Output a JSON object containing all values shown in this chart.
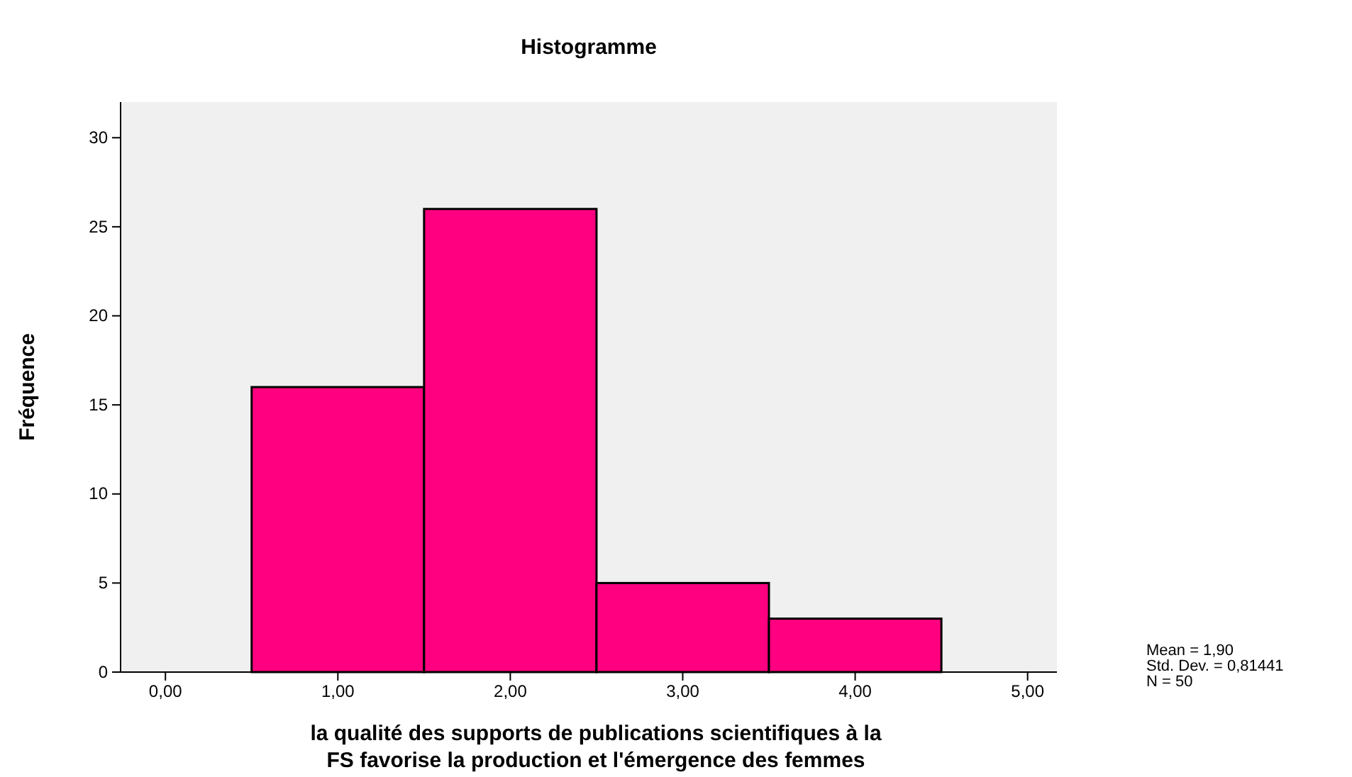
{
  "chart_data": {
    "type": "histogram",
    "title": "Histogramme",
    "xlabel": "la qualité des supports de publications scientifiques à la FS favorise la production et l'émergence des femmes",
    "ylabel": "Fréquence",
    "bins": [
      0.5,
      1.5,
      2.5,
      3.5,
      4.5
    ],
    "values": [
      16,
      26,
      5,
      3
    ],
    "color": "#ff0080",
    "xlim": [
      -0.26,
      5.17
    ],
    "xticks": [
      {
        "value": 0,
        "label": "0,00"
      },
      {
        "value": 1,
        "label": "1,00"
      },
      {
        "value": 2,
        "label": "2,00"
      },
      {
        "value": 3,
        "label": "3,00"
      },
      {
        "value": 4,
        "label": "4,00"
      },
      {
        "value": 5,
        "label": "5,00"
      }
    ],
    "ylim": [
      0,
      32
    ],
    "yticks": [
      0,
      5,
      10,
      15,
      20,
      25,
      30
    ],
    "grid": false,
    "annotations": [
      "Mean = 1,90",
      "Std. Dev. = 0,81441",
      "N = 50"
    ]
  }
}
